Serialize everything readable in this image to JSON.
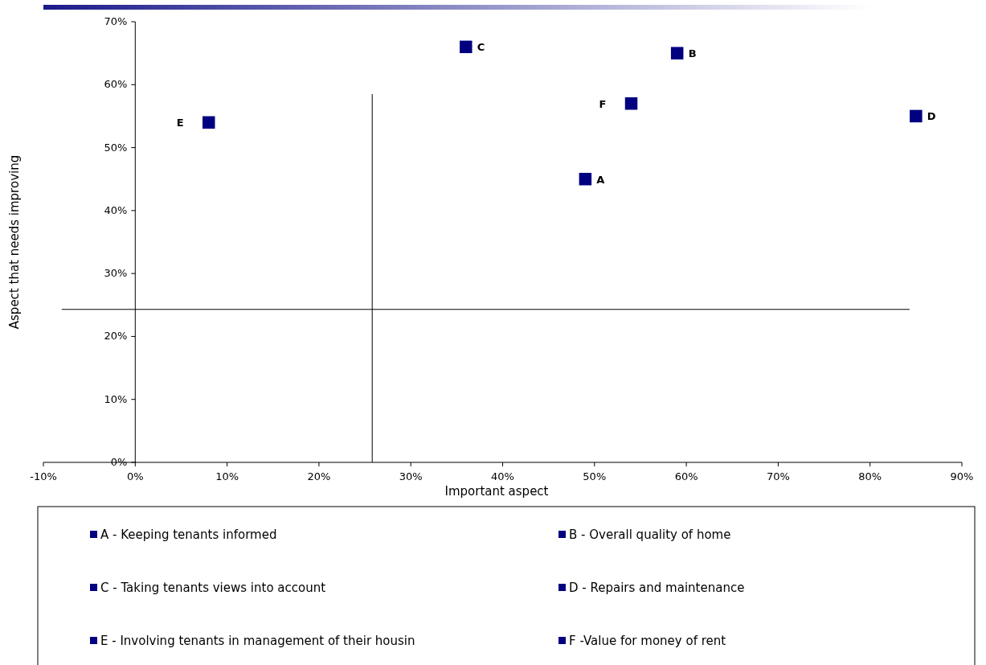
{
  "chart_data": {
    "type": "scatter",
    "xlabel": "Important aspect",
    "ylabel": "Aspect that needs improving",
    "xlim": [
      -0.1,
      0.9
    ],
    "ylim": [
      0,
      0.7
    ],
    "xticks": [
      {
        "value": -0.1,
        "label": "-10%"
      },
      {
        "value": 0,
        "label": "0%"
      },
      {
        "value": 0.1,
        "label": "10%"
      },
      {
        "value": 0.2,
        "label": "20%"
      },
      {
        "value": 0.3,
        "label": "30%"
      },
      {
        "value": 0.4,
        "label": "40%"
      },
      {
        "value": 0.5,
        "label": "50%"
      },
      {
        "value": 0.6,
        "label": "60%"
      },
      {
        "value": 0.7,
        "label": "70%"
      },
      {
        "value": 0.8,
        "label": "80%"
      },
      {
        "value": 0.9,
        "label": "90%"
      }
    ],
    "yticks": [
      {
        "value": 0,
        "label": "0%"
      },
      {
        "value": 0.1,
        "label": "10%"
      },
      {
        "value": 0.2,
        "label": "20%"
      },
      {
        "value": 0.3,
        "label": "30%"
      },
      {
        "value": 0.4,
        "label": "40%"
      },
      {
        "value": 0.5,
        "label": "50%"
      },
      {
        "value": 0.6,
        "label": "60%"
      },
      {
        "value": 0.7,
        "label": "70%"
      }
    ],
    "marker": "square",
    "legend": "bottom",
    "series": [
      {
        "name": "A - Keeping tenants informed",
        "color": "#000080",
        "x": [
          0.49
        ],
        "values": [
          0.45
        ]
      },
      {
        "name": "B - Overall quality of home",
        "color": "#000080",
        "x": [
          0.59
        ],
        "values": [
          0.65
        ]
      },
      {
        "name": "C - Taking tenants views into account",
        "color": "#000080",
        "x": [
          0.36
        ],
        "values": [
          0.66
        ]
      },
      {
        "name": "D - Repairs and maintenance",
        "color": "#000080",
        "x": [
          0.85
        ],
        "values": [
          0.55
        ]
      },
      {
        "name": "E - Involving tenants in management of their housin",
        "color": "#000080",
        "x": [
          0.08
        ],
        "values": [
          0.54
        ]
      },
      {
        "name": "F -Value for money of rent",
        "color": "#000080",
        "x": [
          0.54
        ],
        "values": [
          0.57
        ]
      }
    ],
    "annotations": [
      {
        "text": "A",
        "x": 0.49,
        "y": 0.45
      },
      {
        "text": "B",
        "x": 0.59,
        "y": 0.65
      },
      {
        "text": "C",
        "x": 0.36,
        "y": 0.66
      },
      {
        "text": "D",
        "x": 0.85,
        "y": 0.55
      },
      {
        "text": "E",
        "x": 0.08,
        "y": 0.54
      },
      {
        "text": "F",
        "x": 0.54,
        "y": 0.57
      }
    ],
    "ref_lines": [
      {
        "axis": "x",
        "value": 0.258,
        "color": "#000000"
      },
      {
        "axis": "y",
        "value": 0.243,
        "color": "#000000"
      }
    ]
  }
}
